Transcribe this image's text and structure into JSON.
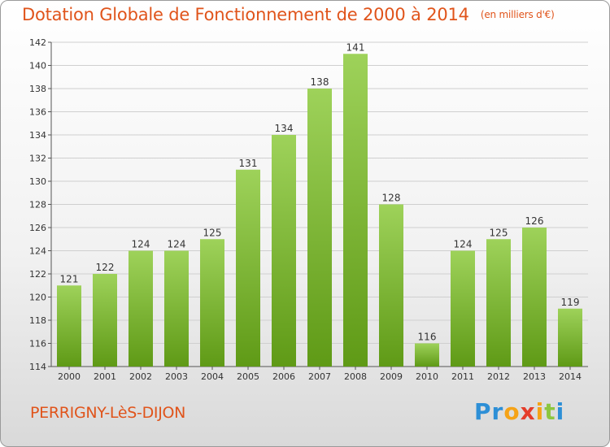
{
  "title": "Dotation Globale de Fonctionnement de 2000 à 2014",
  "unit_note": "(en milliers d'€)",
  "commune": "PERRIGNY-LèS-DIJON",
  "logo": {
    "letters": [
      "P",
      "r",
      "o",
      "x",
      "i",
      "t",
      "i"
    ],
    "colors": [
      "#2d8fd6",
      "#2d8fd6",
      "#f5a317",
      "#e53d2a",
      "#f5a317",
      "#8cc63f",
      "#2d8fd6"
    ]
  },
  "colors": {
    "bar_top": "#9ed25a",
    "bar_bottom": "#5f9a16",
    "accent": "#e0541b",
    "grid": "#cfcfcf"
  },
  "chart_data": {
    "type": "bar",
    "categories": [
      "2000",
      "2001",
      "2002",
      "2003",
      "2004",
      "2005",
      "2006",
      "2007",
      "2008",
      "2009",
      "2010",
      "2011",
      "2012",
      "2013",
      "2014"
    ],
    "values": [
      121,
      122,
      124,
      124,
      125,
      131,
      134,
      138,
      141,
      128,
      116,
      124,
      125,
      126,
      119
    ],
    "ylim": [
      114,
      142
    ],
    "yticks": [
      114,
      116,
      118,
      120,
      122,
      124,
      126,
      128,
      130,
      132,
      134,
      136,
      138,
      140,
      142
    ],
    "grid": true
  }
}
